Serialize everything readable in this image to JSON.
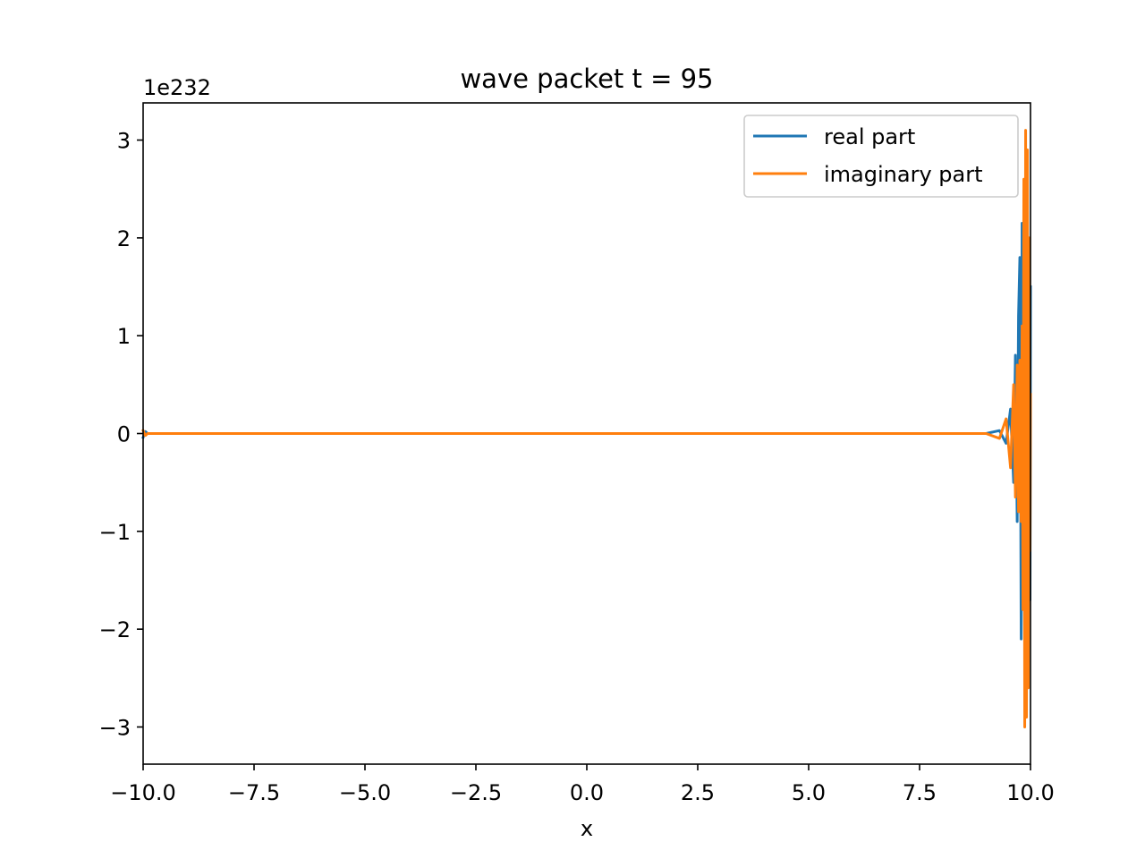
{
  "chart_data": {
    "type": "line",
    "title": "wave packet t = 95",
    "xlabel": "x",
    "ylabel": "",
    "y_offset_label": "1e232",
    "xlim": [
      -10.0,
      10.0
    ],
    "ylim": [
      -3.38,
      3.38
    ],
    "x_ticks": [
      -10.0,
      -7.5,
      -5.0,
      -2.5,
      0.0,
      2.5,
      5.0,
      7.5,
      10.0
    ],
    "x_tick_labels": [
      "−10.0",
      "−7.5",
      "−5.0",
      "−2.5",
      "0.0",
      "2.5",
      "5.0",
      "7.5",
      "10.0"
    ],
    "y_ticks": [
      -3,
      -2,
      -1,
      0,
      1,
      2,
      3
    ],
    "y_tick_labels": [
      "−3",
      "−2",
      "−1",
      "0",
      "1",
      "2",
      "3"
    ],
    "grid": false,
    "legend_position": "upper-right",
    "series": [
      {
        "name": "real part",
        "color": "#1f77b4",
        "x": [
          -10.0,
          -9.95,
          -9.9,
          0.0,
          9.0,
          9.3,
          9.45,
          9.55,
          9.62,
          9.66,
          9.7,
          9.73,
          9.76,
          9.79,
          9.81,
          9.83,
          9.85,
          9.87,
          9.89,
          9.91,
          9.93,
          9.95,
          9.97,
          9.99,
          10.0
        ],
        "values": [
          -0.04,
          0.02,
          0.0,
          0.0,
          0.0,
          0.03,
          -0.1,
          0.25,
          -0.5,
          0.8,
          -0.9,
          1.2,
          1.8,
          -2.1,
          2.15,
          -1.5,
          1.0,
          -2.2,
          0.6,
          -0.5,
          1.5,
          -1.8,
          2.0,
          -1.7,
          1.5
        ]
      },
      {
        "name": "imaginary part",
        "color": "#ff7f0e",
        "x": [
          -10.0,
          -9.95,
          -9.9,
          0.0,
          9.0,
          9.3,
          9.45,
          9.55,
          9.62,
          9.66,
          9.7,
          9.73,
          9.76,
          9.79,
          9.81,
          9.83,
          9.85,
          9.87,
          9.89,
          9.91,
          9.93,
          9.95,
          9.97,
          9.99,
          10.0
        ],
        "values": [
          0.03,
          -0.02,
          0.0,
          0.0,
          0.0,
          -0.05,
          0.15,
          -0.35,
          0.5,
          -0.65,
          0.7,
          -0.8,
          0.75,
          -0.9,
          1.1,
          -1.8,
          2.6,
          -3.0,
          3.1,
          -2.9,
          2.9,
          -2.6,
          2.0,
          -1.2,
          0.4
        ]
      }
    ]
  }
}
